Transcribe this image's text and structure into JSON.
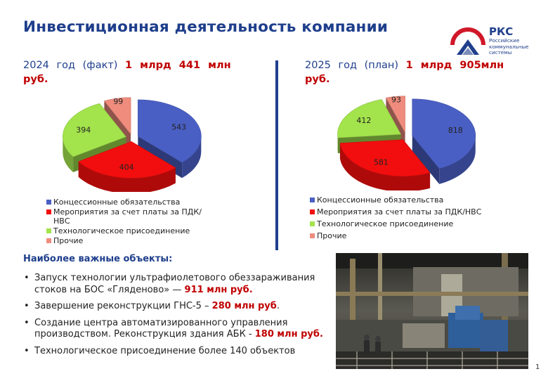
{
  "title": "Инвестиционная деятельность компании",
  "logo": {
    "name": "РКС",
    "sub_lines": [
      "Российские",
      "коммунальные",
      "системы"
    ],
    "color": "#1f3f8c",
    "accent": "#d0182a"
  },
  "left_heading": {
    "text": "2024 год (факт)",
    "amount": "1 млрд 441 млн руб."
  },
  "right_heading": {
    "text": "2025 год (план)",
    "amount": "1 млрд 905млн руб."
  },
  "chart_data": [
    {
      "type": "pie",
      "title": "",
      "categories": [
        "Концессионные обязательства",
        "Мероприятия за счет платы за ПДК/НВС",
        "Технологическое присоединение",
        "Прочие"
      ],
      "values": [
        543,
        404,
        394,
        99
      ],
      "colors": [
        "#4a5fc4",
        "#f20e0e",
        "#a3e34c",
        "#ef8c7d"
      ],
      "legend": "bottom"
    },
    {
      "type": "pie",
      "title": "",
      "categories": [
        "Концессионные обязательства",
        "Мероприятия за счет платы за ПДК/НВС",
        "Технологическое присоединение",
        "Прочие"
      ],
      "values": [
        818,
        581,
        412,
        93
      ],
      "colors": [
        "#4a5fc4",
        "#f20e0e",
        "#a3e34c",
        "#ef8c7d"
      ],
      "legend": "bottom"
    }
  ],
  "objects_title": "Наиболее важные объекты:",
  "objects": [
    {
      "text": "Запуск технологии ультрафиолетового обеззараживания стоков на БОС «Гляденово» — ",
      "amount": "911 млн руб.",
      "tail": ""
    },
    {
      "text": "Завершение реконструкции ГНС-5 – ",
      "amount": "280 млн руб",
      "tail": "."
    },
    {
      "text": "Создание центра автоматизированного управления производством. Реконструкция здания АБК - ",
      "amount": "180 млн руб.",
      "tail": ""
    },
    {
      "text": "Технологическое присоединение более 140 объектов",
      "amount": "",
      "tail": ""
    }
  ],
  "page_number": "1"
}
